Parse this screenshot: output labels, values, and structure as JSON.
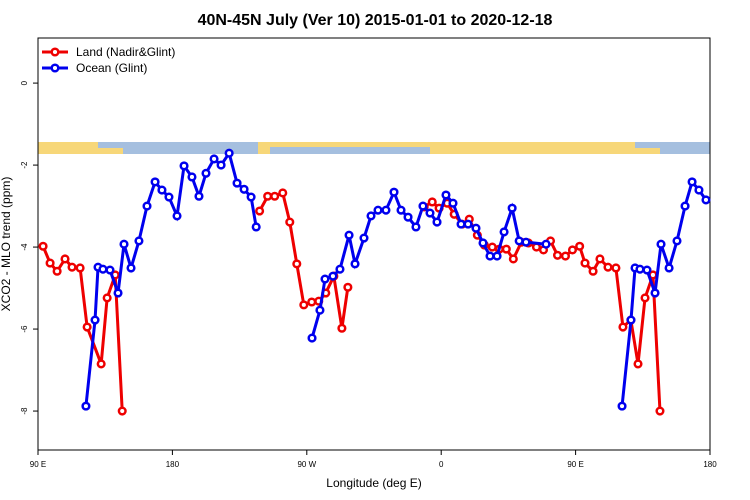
{
  "chart_data": {
    "type": "line",
    "title": "40N-45N July (Ver 10)   2015-01-01 to 2020-12-18",
    "x_label": "Longitude (deg E)",
    "y_label": "XCO2 - MLO trend (ppm)",
    "xlim": [
      90,
      540
    ],
    "ylim": [
      -8.95,
      1.1
    ],
    "xticks": [
      {
        "value": 90,
        "label": "90 E"
      },
      {
        "value": 180,
        "label": "180"
      },
      {
        "value": 270,
        "label": "90 W"
      },
      {
        "value": 360,
        "label": "0"
      },
      {
        "value": 450,
        "label": "90 E"
      },
      {
        "value": 540,
        "label": "180"
      }
    ],
    "yticks": [
      0,
      -2,
      -4,
      -6,
      -8
    ],
    "legend": "top-left",
    "series": [
      {
        "name": "Land (Nadir&Glint)",
        "color": "#ee0000",
        "x": [
          93.4,
          98.1,
          102.8,
          108.1,
          112.8,
          118.2,
          122.9,
          132.3,
          136.3,
          141.7,
          146.4,
          null,
          238.4,
          243.8,
          248.5,
          253.9,
          258.6,
          263.3,
          268,
          273.3,
          278,
          282.7,
          288.1,
          293.5,
          297.5,
          null,
          348.6,
          354,
          358.6,
          364,
          368.7,
          374,
          378.8,
          384.2,
          388.9,
          394.2,
          398.9,
          403.6,
          408.3,
          413.7,
          418.4,
          423.8,
          428.5,
          433.2,
          437.9,
          443.2,
          447.9,
          452.7,
          456.3,
          461.7,
          466.3,
          471.7,
          477,
          481.7,
          487,
          491.8,
          496.5,
          501.8,
          506.5
        ],
        "values": [
          -3.98,
          -4.39,
          -4.59,
          -4.29,
          -4.49,
          -4.51,
          -5.95,
          -6.85,
          -5.24,
          -4.68,
          -8.0,
          null,
          -3.12,
          -2.76,
          -2.76,
          -2.68,
          -3.39,
          -4.41,
          -5.41,
          -5.34,
          -5.32,
          -5.12,
          -4.71,
          -5.98,
          -4.98,
          null,
          -3.02,
          -2.9,
          -3.05,
          -2.93,
          -3.2,
          -3.44,
          -3.32,
          -3.71,
          -3.95,
          -4.0,
          -4.05,
          -4.05,
          -4.29,
          -3.88,
          -3.9,
          -4.0,
          -4.07,
          -3.85,
          -4.2,
          -4.22,
          -4.07,
          -3.98,
          -4.39,
          -4.59,
          -4.29,
          -4.49,
          -4.51,
          -5.95,
          -5.78,
          -6.85,
          -5.24,
          -4.68,
          -8.0
        ]
      },
      {
        "name": "Ocean (Glint)",
        "color": "#0000ee",
        "x": [
          122.1,
          128.2,
          130.2,
          133.5,
          138.2,
          143.6,
          147.6,
          152.3,
          157.6,
          163,
          168.4,
          173,
          177.7,
          183.1,
          187.8,
          193.1,
          197.8,
          202.5,
          207.9,
          212.6,
          218,
          223.3,
          228,
          232.7,
          236.1,
          null,
          273.5,
          278.8,
          282.2,
          287.5,
          292.2,
          298.3,
          302.3,
          308.3,
          313,
          317.7,
          323,
          328.4,
          333.1,
          337.8,
          343.1,
          347.8,
          352.5,
          357.2,
          363.2,
          367.9,
          373.3,
          378,
          383.3,
          388,
          392.7,
          397.4,
          402.1,
          407.5,
          412.2,
          416.8,
          430.2,
          null,
          481.1,
          487.1,
          489.8,
          493.1,
          497.8,
          503.2,
          507.2,
          512.6,
          517.9,
          523.3,
          528,
          532.6,
          537.3
        ],
        "values": [
          -7.88,
          -5.78,
          -4.49,
          -4.54,
          -4.56,
          -5.12,
          -3.93,
          -4.51,
          -3.85,
          -3.0,
          -2.41,
          -2.61,
          -2.78,
          -3.24,
          -2.02,
          -2.29,
          -2.76,
          -2.2,
          -1.85,
          -2.0,
          -1.71,
          -2.44,
          -2.59,
          -2.78,
          -3.51,
          null,
          -6.22,
          -5.54,
          -4.78,
          -4.71,
          -4.54,
          -3.71,
          -4.41,
          -3.78,
          -3.24,
          -3.1,
          -3.1,
          -2.66,
          -3.1,
          -3.27,
          -3.51,
          -3.0,
          -3.17,
          -3.39,
          -2.73,
          -2.93,
          -3.44,
          -3.44,
          -3.54,
          -3.9,
          -4.22,
          -4.22,
          -3.63,
          -3.05,
          -3.85,
          -3.88,
          -3.93,
          null,
          -7.88,
          -5.78,
          -4.51,
          -4.54,
          -4.56,
          -5.12,
          -3.93,
          -4.51,
          -3.85,
          -3.0,
          -2.41,
          -2.61,
          -2.85
        ]
      }
    ]
  }
}
